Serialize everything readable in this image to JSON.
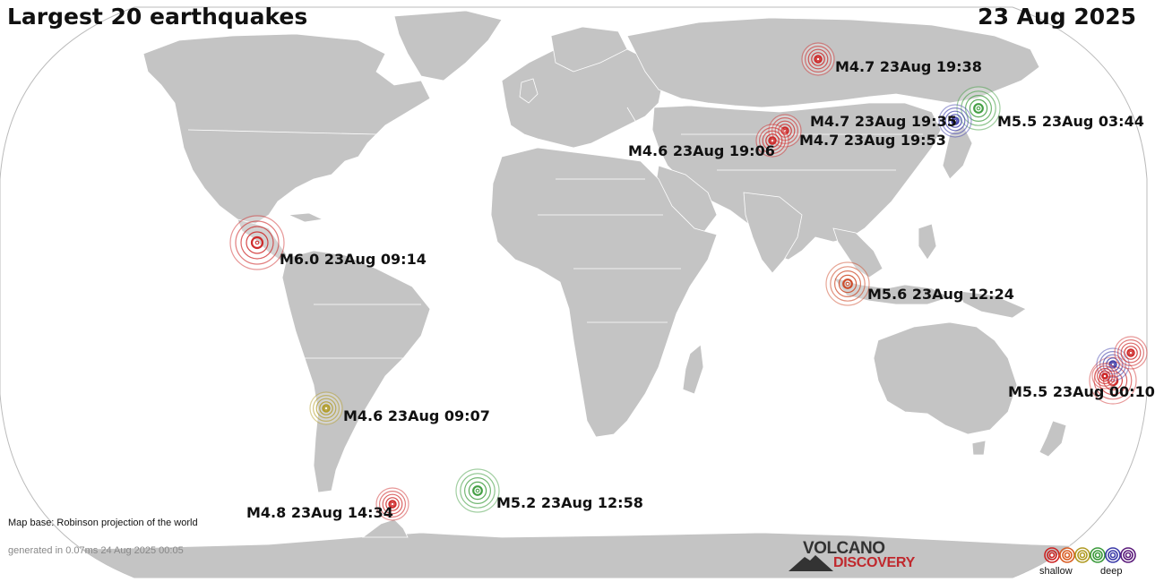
{
  "header": {
    "title": "Largest 20 earthquakes",
    "date": "23 Aug 2025"
  },
  "footer": {
    "map_base": "Map base: Robinson projection of the world",
    "generated": "generated in 0.07ms 24 Aug 2025 00:05"
  },
  "logo": {
    "line1": "VOLCANO",
    "line2": "DISCOVERY",
    "colors": {
      "dark": "#333333",
      "red": "#c0282d"
    }
  },
  "legend": {
    "shallow": "shallow",
    "deep": "deep",
    "colors": [
      "#cc2222",
      "#d95c22",
      "#b09a22",
      "#3a9a3a",
      "#3a3aa8",
      "#5a1a7a"
    ]
  },
  "colors": {
    "ocean": "#ffffff",
    "land": "#c4c4c4",
    "border": "#ffffff",
    "outline": "#bbbbbb"
  },
  "earthquakes": [
    {
      "magnitude": "M6.0",
      "time": "23Aug 09:14",
      "label": "M6.0 23Aug 09:14",
      "color": "#cc2222",
      "depth_class": "shallow"
    },
    {
      "magnitude": "M5.6",
      "time": "23Aug 12:24",
      "label": "M5.6 23Aug 12:24",
      "color": "#cc4422",
      "depth_class": "shallow"
    },
    {
      "magnitude": "M5.5",
      "time": "23Aug 03:44",
      "label": "M5.5 23Aug 03:44",
      "color": "#3a9a3a",
      "depth_class": "intermediate"
    },
    {
      "magnitude": "M5.5",
      "time": "23Aug 00:10",
      "label": "M5.5 23Aug 00:10",
      "color": "#cc2222",
      "depth_class": "shallow"
    },
    {
      "magnitude": "M5.2",
      "time": "23Aug 12:58",
      "label": "M5.2 23Aug 12:58",
      "color": "#3a9a3a",
      "depth_class": "intermediate"
    },
    {
      "magnitude": "M4.8",
      "time": "23Aug 14:34",
      "label": "M4.8 23Aug 14:34",
      "color": "#cc2222",
      "depth_class": "shallow"
    },
    {
      "magnitude": "M4.7",
      "time": "23Aug 19:38",
      "label": "M4.7 23Aug 19:38",
      "color": "#cc2222",
      "depth_class": "shallow"
    },
    {
      "magnitude": "M4.7",
      "time": "23Aug 19:35",
      "label": "M4.7 23Aug 19:35",
      "color": "#3a3aa8",
      "depth_class": "deep"
    },
    {
      "magnitude": "M4.7",
      "time": "23Aug 19:53",
      "label": "M4.7 23Aug 19:53",
      "color": "#cc2222",
      "depth_class": "shallow"
    },
    {
      "magnitude": "M4.6",
      "time": "23Aug 19:06",
      "label": "M4.6 23Aug 19:06",
      "color": "#cc2222",
      "depth_class": "shallow"
    },
    {
      "magnitude": "M4.6",
      "time": "23Aug 09:07",
      "label": "M4.6 23Aug 09:07",
      "color": "#b09a22",
      "depth_class": "intermediate"
    },
    {
      "magnitude": "",
      "time": "",
      "label": "",
      "color": "#3a3aa8",
      "depth_class": "deep"
    },
    {
      "magnitude": "",
      "time": "",
      "label": "",
      "color": "#cc2222",
      "depth_class": "shallow"
    },
    {
      "magnitude": "",
      "time": "",
      "label": "",
      "color": "#cc2222",
      "depth_class": "shallow"
    }
  ]
}
